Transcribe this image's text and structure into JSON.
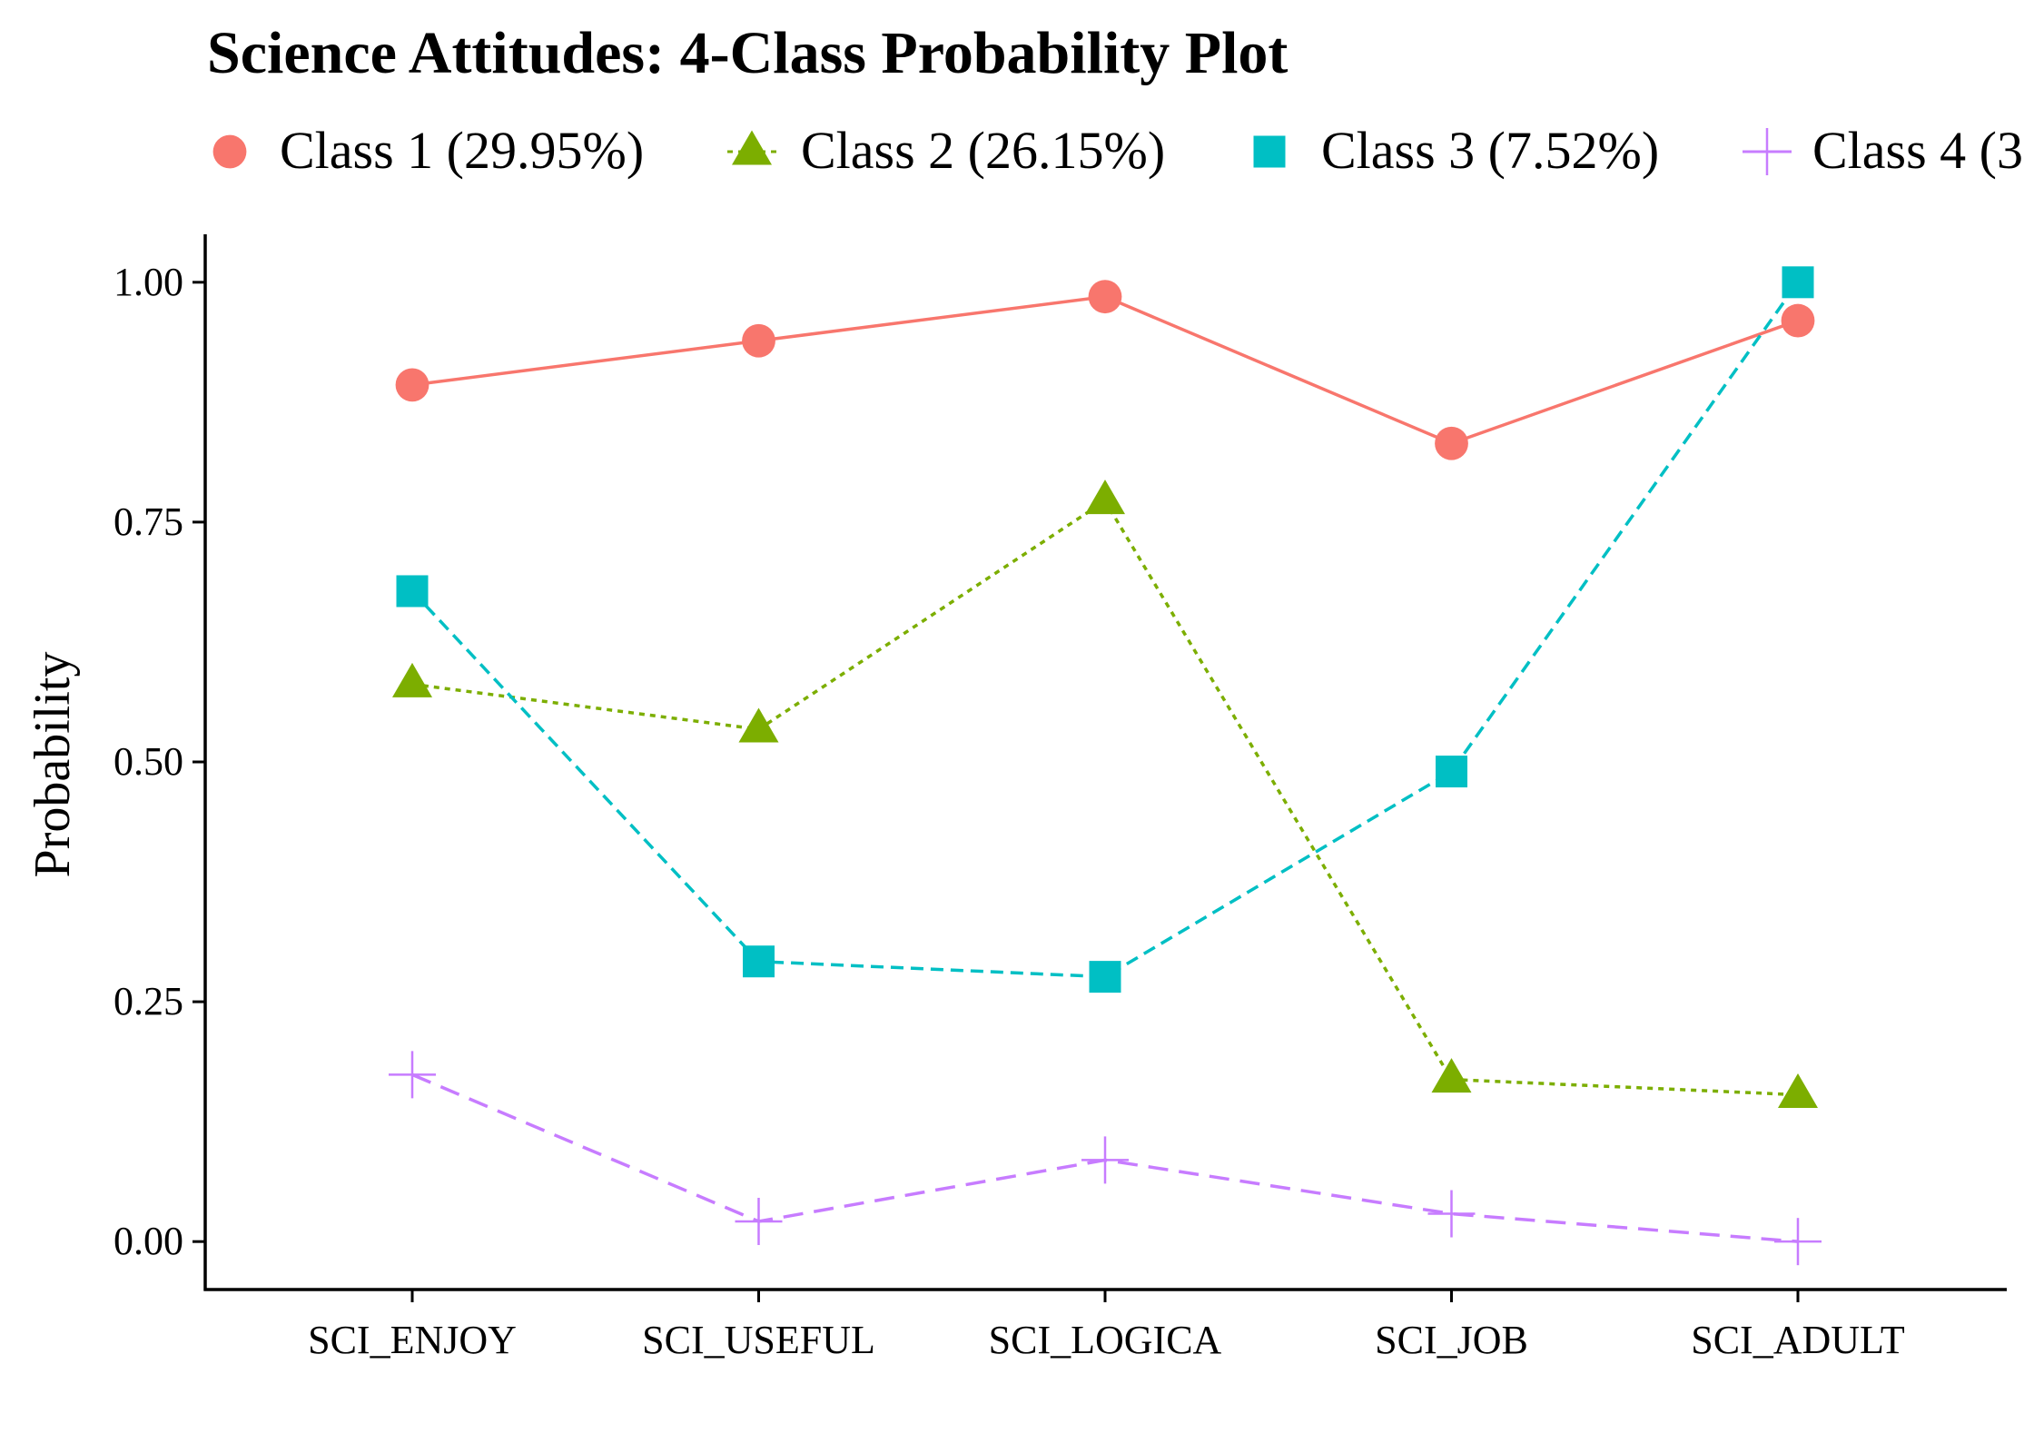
{
  "chart_data": {
    "type": "line",
    "title": "Science Attitudes: 4-Class Probability Plot",
    "xlabel": "",
    "ylabel": "Probability",
    "categories": [
      "SCI_ENJOY",
      "SCI_USEFUL",
      "SCI_LOGICA",
      "SCI_JOB",
      "SCI_ADULT"
    ],
    "ylim": [
      -0.05,
      1.05
    ],
    "yticks": [
      "0.00",
      "0.25",
      "0.50",
      "0.75",
      "1.00"
    ],
    "legend_position": "top",
    "grid": false,
    "series": [
      {
        "name": "Class 1 (29.95%)",
        "color": "#F8766D",
        "marker": "circle",
        "line": "solid",
        "values": [
          0.893,
          0.939,
          0.985,
          0.832,
          0.96
        ]
      },
      {
        "name": "Class 2 (26.15%)",
        "color": "#7CAE00",
        "marker": "triangle",
        "line": "dotted",
        "values": [
          0.581,
          0.534,
          0.772,
          0.169,
          0.153
        ]
      },
      {
        "name": "Class 3 (7.52%)",
        "color": "#00BFC4",
        "marker": "square",
        "line": "dashed",
        "values": [
          0.678,
          0.292,
          0.276,
          0.49,
          1.0
        ]
      },
      {
        "name": "Class 4 (3",
        "color": "#C77CFF",
        "marker": "plus",
        "line": "longdash",
        "values": [
          0.174,
          0.021,
          0.085,
          0.029,
          0.0
        ]
      }
    ]
  }
}
